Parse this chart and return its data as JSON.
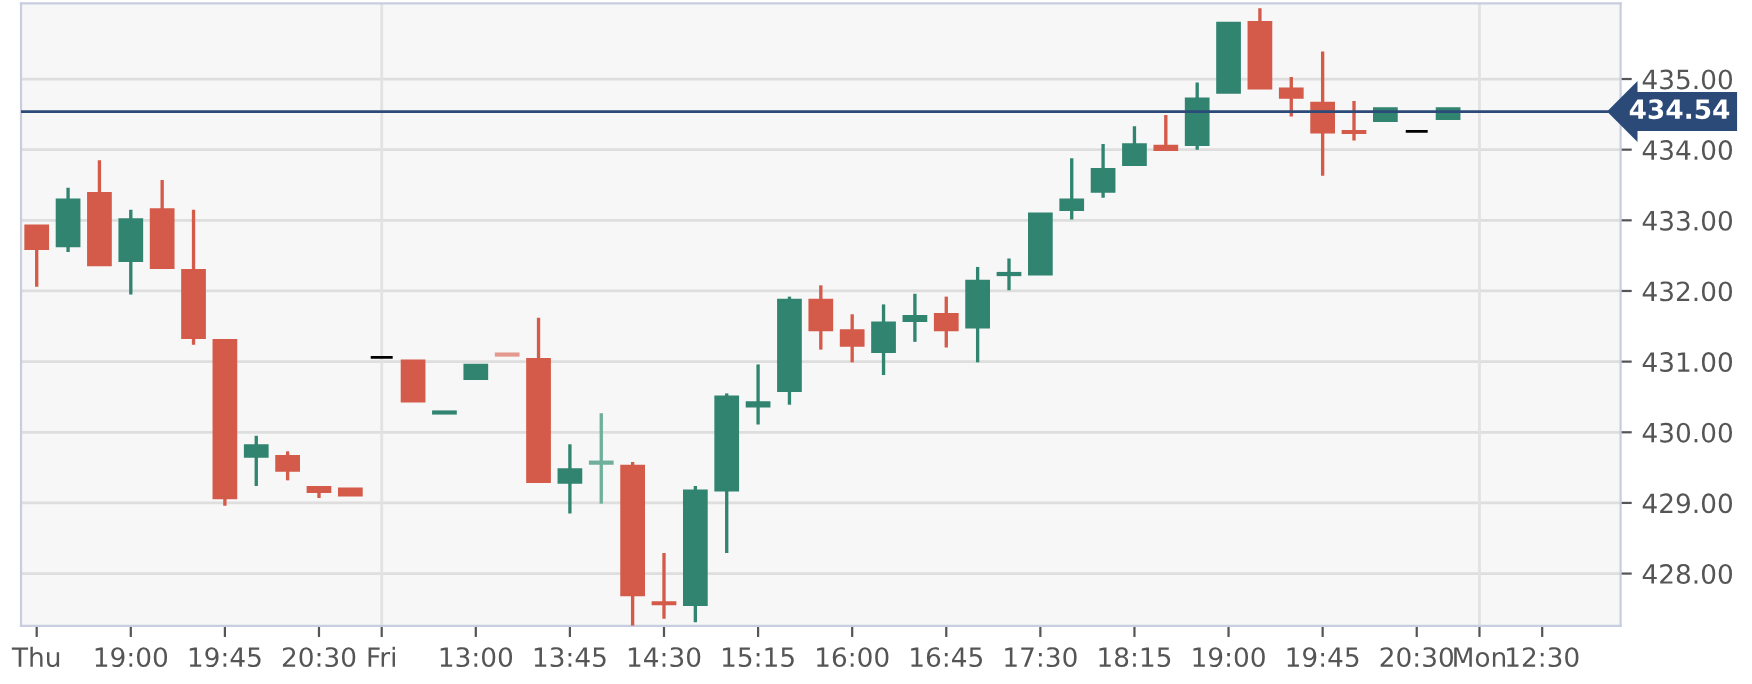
{
  "chart_data": {
    "type": "candlestick",
    "categories": [
      "Thu",
      null,
      null,
      "19:00",
      null,
      null,
      "19:45",
      null,
      null,
      "20:30",
      null,
      "Fri",
      null,
      null,
      "13:00",
      null,
      null,
      "13:45",
      null,
      null,
      "14:30",
      null,
      null,
      "15:15",
      null,
      null,
      "16:00",
      null,
      null,
      "16:45",
      null,
      null,
      "17:30",
      null,
      null,
      "18:15",
      null,
      null,
      "19:00",
      null,
      null,
      "19:45",
      null,
      null,
      "20:30",
      null,
      "Mon",
      null,
      "12:30",
      null,
      null
    ],
    "ohlc": [
      [
        432.92,
        432.92,
        432.06,
        432.6
      ],
      [
        432.64,
        433.46,
        432.55,
        433.29
      ],
      [
        433.38,
        433.85,
        432.37,
        432.37
      ],
      [
        432.43,
        433.15,
        431.95,
        433.01
      ],
      [
        433.15,
        433.57,
        432.33,
        432.33
      ],
      [
        432.29,
        433.15,
        431.24,
        431.34
      ],
      [
        431.3,
        431.3,
        428.96,
        429.07
      ],
      [
        429.66,
        429.95,
        429.24,
        429.81
      ],
      [
        429.66,
        429.73,
        429.32,
        429.46
      ],
      [
        429.22,
        429.22,
        429.07,
        429.16
      ],
      [
        429.2,
        429.2,
        429.11,
        429.11
      ],
      [
        431.06,
        431.06,
        431.06,
        431.06
      ],
      [
        431.01,
        431.01,
        430.44,
        430.44
      ],
      [
        430.27,
        430.29,
        430.27,
        430.29
      ],
      [
        430.76,
        430.95,
        430.76,
        430.95
      ],
      [
        431.11,
        431.11,
        431.09,
        431.09
      ],
      [
        431.03,
        431.62,
        429.3,
        429.3
      ],
      [
        429.29,
        429.83,
        428.85,
        429.47
      ],
      [
        429.56,
        430.27,
        428.99,
        429.58
      ],
      [
        429.52,
        429.58,
        427.26,
        427.7
      ],
      [
        427.59,
        428.29,
        427.36,
        427.57
      ],
      [
        427.56,
        429.24,
        427.31,
        429.17
      ],
      [
        429.18,
        430.55,
        428.29,
        430.5
      ],
      [
        430.37,
        430.96,
        430.11,
        430.42
      ],
      [
        430.59,
        431.92,
        430.39,
        431.87
      ],
      [
        431.87,
        432.08,
        431.17,
        431.45
      ],
      [
        431.44,
        431.67,
        430.99,
        431.23
      ],
      [
        431.14,
        431.81,
        430.81,
        431.55
      ],
      [
        431.58,
        431.96,
        431.28,
        431.64
      ],
      [
        431.67,
        431.92,
        431.2,
        431.45
      ],
      [
        431.49,
        432.34,
        430.99,
        432.14
      ],
      [
        432.23,
        432.46,
        432.01,
        432.25
      ],
      [
        432.24,
        433.09,
        432.24,
        433.09
      ],
      [
        433.15,
        433.88,
        433.01,
        433.29
      ],
      [
        433.41,
        434.08,
        433.32,
        433.72
      ],
      [
        433.79,
        434.33,
        433.79,
        434.07
      ],
      [
        434.05,
        434.49,
        434.0,
        434.0
      ],
      [
        434.07,
        434.95,
        434.0,
        434.72
      ],
      [
        434.81,
        435.79,
        434.81,
        435.79
      ],
      [
        435.8,
        436.0,
        434.87,
        434.87
      ],
      [
        434.86,
        435.03,
        434.47,
        434.74
      ],
      [
        434.66,
        435.39,
        433.63,
        434.25
      ],
      [
        434.26,
        434.69,
        434.13,
        434.24
      ],
      [
        434.41,
        434.58,
        434.41,
        434.58
      ],
      [
        434.26,
        434.26,
        434.26,
        434.26
      ],
      [
        434.44,
        434.58,
        434.44,
        434.58
      ],
      null,
      null,
      null,
      null,
      null
    ],
    "colors": [
      "#d45a49",
      "#31846f",
      "#d45a49",
      "#31846f",
      "#d45a49",
      "#d45a49",
      "#d45a49",
      "#31846f",
      "#d45a49",
      "#d45a49",
      "#d45a49",
      "#000000",
      "#d45a49",
      "#31846f",
      "#31846f",
      "#e59a8f",
      "#d45a49",
      "#31846f",
      "#6faf9c",
      "#d45a49",
      "#d45a49",
      "#31846f",
      "#31846f",
      "#31846f",
      "#31846f",
      "#d45a49",
      "#d45a49",
      "#31846f",
      "#31846f",
      "#d45a49",
      "#31846f",
      "#31846f",
      "#31846f",
      "#31846f",
      "#31846f",
      "#31846f",
      "#d45a49",
      "#31846f",
      "#31846f",
      "#d45a49",
      "#d45a49",
      "#d45a49",
      "#d45a49",
      "#31846f",
      "#000000",
      "#31846f",
      null,
      null,
      null,
      null,
      null
    ],
    "ylim": [
      427.26,
      436.07
    ],
    "yticks": [
      {
        "value": 428,
        "label": "428.00"
      },
      {
        "value": 429,
        "label": "429.00"
      },
      {
        "value": 430,
        "label": "430.00"
      },
      {
        "value": 431,
        "label": "431.00"
      },
      {
        "value": 432,
        "label": "432.00"
      },
      {
        "value": 433,
        "label": "433.00"
      },
      {
        "value": 434,
        "label": "434.00"
      },
      {
        "value": 435,
        "label": "435.00"
      }
    ],
    "grid": "y",
    "ref_lines": [
      {
        "axis": "y",
        "value": 434.54,
        "label": "434.54",
        "color": "#2b4a78"
      },
      {
        "axis": "x",
        "value": "Fri",
        "color": "#e2e2e2"
      },
      {
        "axis": "x",
        "value": "Mon",
        "color": "#e2e2e2"
      }
    ]
  }
}
